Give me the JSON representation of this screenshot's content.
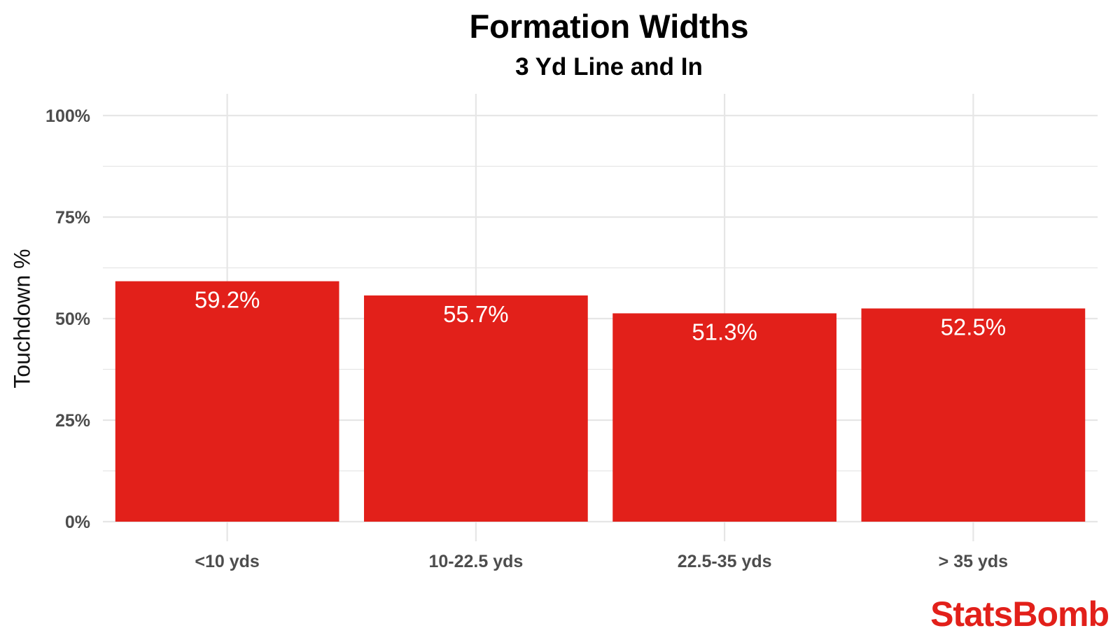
{
  "chart_data": {
    "type": "bar",
    "title": "Formation Widths",
    "subtitle": "3 Yd Line and In",
    "ylabel": "Touchdown %",
    "xlabel": "",
    "categories": [
      "<10 yds",
      "10-22.5 yds",
      "22.5-35 yds",
      "> 35 yds"
    ],
    "values": [
      59.2,
      55.7,
      51.3,
      52.5
    ],
    "data_labels": [
      "59.2%",
      "55.7%",
      "51.3%",
      "52.5%"
    ],
    "ylim": [
      0,
      100
    ],
    "yticks": [
      0,
      25,
      50,
      75,
      100
    ],
    "ytick_labels": [
      "0%",
      "25%",
      "50%",
      "75%",
      "100%"
    ],
    "grid": true,
    "bar_color": "#e2201a",
    "grid_color": "#e6e6e6"
  },
  "branding": {
    "logo_text": "StatsBomb",
    "logo_color": "#e2201a"
  }
}
